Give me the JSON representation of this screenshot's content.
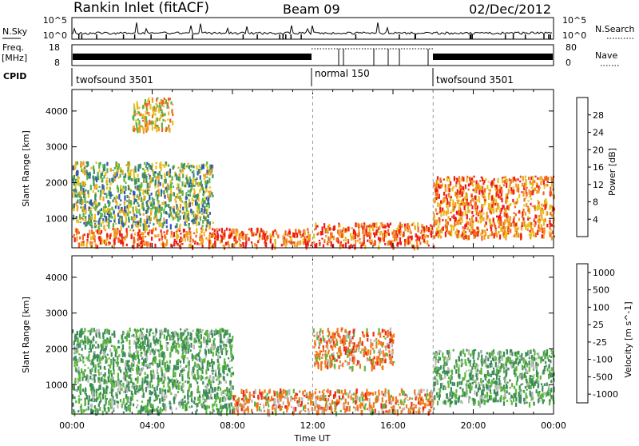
{
  "header": {
    "station": "Rankin Inlet (fitACF)",
    "beam": "Beam 09",
    "date": "02/Dec/2012"
  },
  "strip_panels": {
    "nsky_label": "N.Sky",
    "nsky_ticks": [
      "10^5",
      "10^0"
    ],
    "nsearch_label": "N.Search",
    "nsearch_ticks": [
      "10^5",
      "10^0"
    ],
    "freq_label": "Freq.",
    "freq_unit": "[MHz]",
    "freq_ticks": [
      "18",
      "8"
    ],
    "nave_label": "Nave",
    "nave_ticks": [
      "80",
      "0"
    ],
    "cpid_label": "CPID",
    "cpid_segments": [
      {
        "name": "twofsound 3501",
        "start_h": 0,
        "end_h": 12
      },
      {
        "name": "normal 150",
        "start_h": 12,
        "end_h": 18
      },
      {
        "name": "twofsound 3501",
        "start_h": 18,
        "end_h": 24
      }
    ]
  },
  "chart_data": [
    {
      "type": "heatmap",
      "title": "",
      "xlabel": "Time UT",
      "ylabel": "Slant Range [km]",
      "xlim": [
        0,
        24
      ],
      "ylim": [
        180,
        4600
      ],
      "x_ticks": [
        "00:00",
        "04:00",
        "08:00",
        "12:00",
        "16:00",
        "20:00",
        "00:00"
      ],
      "y_ticks": [
        1000,
        2000,
        3000,
        4000
      ],
      "colorbar_label": "Power [dB]",
      "colorbar_ticks": [
        4,
        8,
        12,
        16,
        20,
        24,
        28
      ],
      "colorbar_colors": [
        "#1a1aff",
        "#2f55b5",
        "#3d8a66",
        "#55b34a",
        "#e6c21c",
        "#f39a24",
        "#f0651e",
        "#f01a14"
      ],
      "regions": [
        {
          "t0": 0,
          "t1": 12,
          "r0": 250,
          "r1": 750,
          "value": 26
        },
        {
          "t0": 0,
          "t1": 7,
          "r0": 800,
          "r1": 2600,
          "value": 14
        },
        {
          "t0": 3,
          "t1": 5,
          "r0": 3500,
          "r1": 4400,
          "value": 20
        },
        {
          "t0": 12,
          "t1": 18,
          "r0": 250,
          "r1": 900,
          "value": 26
        },
        {
          "t0": 18,
          "t1": 24,
          "r0": 500,
          "r1": 2200,
          "value": 24
        }
      ]
    },
    {
      "type": "heatmap",
      "title": "",
      "xlabel": "Time UT",
      "ylabel": "Slant Range [km]",
      "xlim": [
        0,
        24
      ],
      "ylim": [
        180,
        4600
      ],
      "x_ticks": [
        "00:00",
        "04:00",
        "08:00",
        "12:00",
        "16:00",
        "20:00",
        "00:00"
      ],
      "y_ticks": [
        1000,
        2000,
        3000,
        4000
      ],
      "colorbar_label": "Velocity [m s^-1]",
      "colorbar_ticks": [
        "1000",
        "500",
        "100",
        "25",
        "-25",
        "-100",
        "-500",
        "-1000"
      ],
      "colorbar_colors": [
        "#2b3fb8",
        "#2f6ea3",
        "#3c8c5a",
        "#5cb83c",
        "#b9b9b9",
        "#f2a23a",
        "#f07a1e",
        "#ec2a16"
      ],
      "regions": [
        {
          "t0": 0,
          "t1": 8,
          "r0": 250,
          "r1": 2600,
          "value": 100
        },
        {
          "t0": 8,
          "t1": 18,
          "r0": 250,
          "r1": 900,
          "value": -500
        },
        {
          "t0": 12,
          "t1": 16,
          "r0": 1500,
          "r1": 2600,
          "value": -500
        },
        {
          "t0": 18,
          "t1": 24,
          "r0": 500,
          "r1": 2000,
          "value": 100
        }
      ]
    }
  ]
}
